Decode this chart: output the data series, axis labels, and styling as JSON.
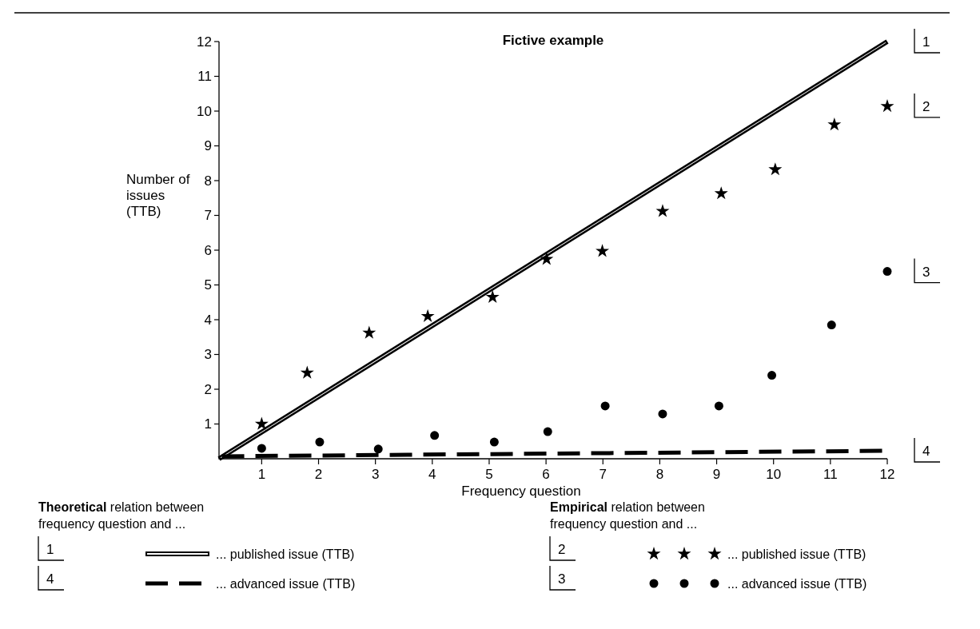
{
  "chart_data": {
    "type": "scatter",
    "title": "Fictive example",
    "xlabel": "Frequency question",
    "ylabel": "Number of issues (TTB)",
    "xlim": [
      0.25,
      12
    ],
    "xticks": [
      1,
      2,
      3,
      4,
      5,
      6,
      7,
      8,
      9,
      10,
      11,
      12
    ],
    "ylim": [
      0,
      12
    ],
    "yticks": [
      1,
      2,
      3,
      4,
      5,
      6,
      7,
      8,
      9,
      10,
      11,
      12
    ],
    "grid": false,
    "legend": "bottom",
    "series": [
      {
        "name": "... published issue (TTB)",
        "type": "line",
        "color": "#000000",
        "line_style": "solid",
        "x": [
          0.25,
          12
        ],
        "values": [
          0,
          12
        ]
      },
      {
        "name": "... published issue (TTB)",
        "color": "#000000",
        "marker": "star",
        "x": [
          1.0,
          1.8,
          2.89,
          3.92,
          5.06,
          6.01,
          6.99,
          8.05,
          9.08,
          10.03,
          11.07,
          12.0
        ],
        "values": [
          1.0,
          2.47,
          3.62,
          4.1,
          4.65,
          5.74,
          5.97,
          7.12,
          7.63,
          8.32,
          9.61,
          10.14
        ]
      },
      {
        "name": "... advanced issue (TTB)",
        "color": "#000000",
        "marker": "circle",
        "x": [
          1.0,
          2.02,
          3.05,
          4.04,
          5.09,
          6.03,
          7.04,
          8.05,
          9.04,
          9.97,
          11.02,
          12.0
        ],
        "values": [
          0.3,
          0.48,
          0.28,
          0.67,
          0.48,
          0.78,
          1.52,
          1.29,
          1.52,
          2.4,
          3.85,
          5.39
        ]
      },
      {
        "name": "... advanced issue (TTB)",
        "type": "line",
        "color": "#000000",
        "line_style": "dashed",
        "x": [
          0.3,
          12
        ],
        "values": [
          0.07,
          0.23
        ]
      }
    ],
    "annotations": [
      "1",
      "2",
      "3",
      "4",
      "Theoretical relation between\nfrequency question and ...",
      "Empirical relation between\nfrequency question and ..."
    ]
  }
}
